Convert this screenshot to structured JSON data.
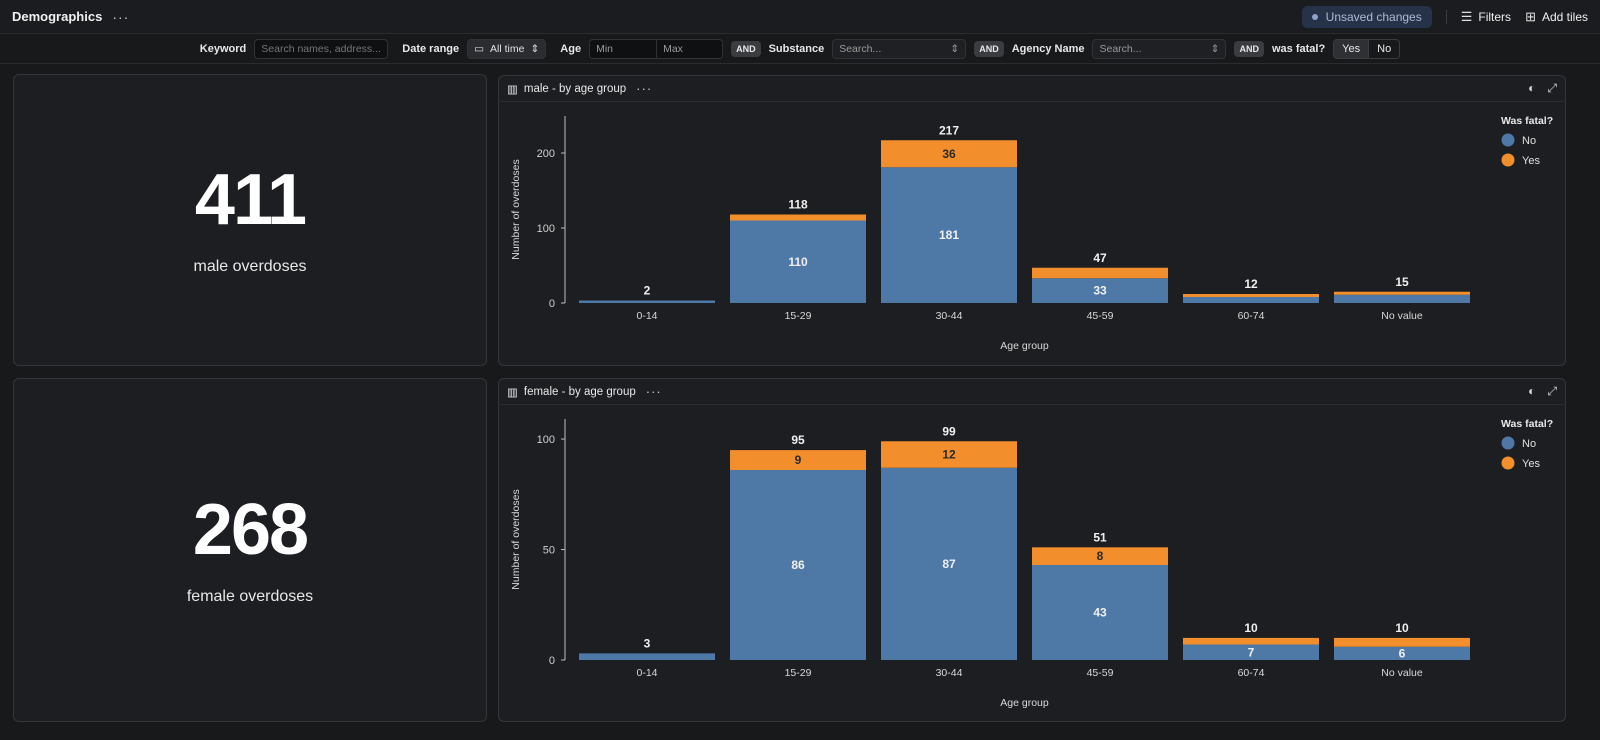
{
  "header": {
    "title": "Demographics",
    "more_icon": "more-horizontal-icon",
    "unsaved_label": "Unsaved changes",
    "filters_label": "Filters",
    "add_tiles_label": "Add tiles"
  },
  "filters": {
    "keyword_label": "Keyword",
    "keyword_placeholder": "Search names, address...",
    "date_range_label": "Date range",
    "date_range_value": "All time",
    "age_label": "Age",
    "age_min_placeholder": "Min",
    "age_max_placeholder": "Max",
    "and_label": "AND",
    "substance_label": "Substance",
    "substance_placeholder": "Search...",
    "agency_label": "Agency Name",
    "agency_placeholder": "Search...",
    "fatal_label": "was fatal?",
    "yes_label": "Yes",
    "no_label": "No"
  },
  "kpis": [
    {
      "value": "411",
      "label": "male overdoses"
    },
    {
      "value": "268",
      "label": "female overdoses"
    }
  ],
  "colors": {
    "no": "#4e79a7",
    "yes": "#f28e2b"
  },
  "chart_data": [
    {
      "type": "bar",
      "title": "male - by age group",
      "xlabel": "Age group",
      "ylabel": "Number of overdoses",
      "ylim": [
        0,
        250
      ],
      "yticks": [
        0,
        100,
        200
      ],
      "categories": [
        "0-14",
        "15-29",
        "30-44",
        "45-59",
        "60-74",
        "No value"
      ],
      "series": [
        {
          "name": "No",
          "values": [
            2,
            110,
            181,
            33,
            8,
            11
          ]
        },
        {
          "name": "Yes",
          "values": [
            0,
            8,
            36,
            14,
            4,
            4
          ]
        }
      ],
      "segment_labels": [
        [
          "",
          "110",
          "181",
          "33",
          "",
          ""
        ],
        [
          "",
          "",
          "36",
          "",
          "",
          ""
        ]
      ],
      "totals": [
        2,
        118,
        217,
        47,
        12,
        15
      ],
      "legend_title": "Was fatal?",
      "legend": [
        "No",
        "Yes"
      ],
      "legend_position": "top-right",
      "stacked": true
    },
    {
      "type": "bar",
      "title": "female - by age group",
      "xlabel": "Age group",
      "ylabel": "Number of overdoses",
      "ylim": [
        0,
        105
      ],
      "yticks": [
        0,
        50,
        100
      ],
      "categories": [
        "0-14",
        "15-29",
        "30-44",
        "45-59",
        "60-74",
        "No value"
      ],
      "series": [
        {
          "name": "No",
          "values": [
            3,
            86,
            87,
            43,
            7,
            6
          ]
        },
        {
          "name": "Yes",
          "values": [
            0,
            9,
            12,
            8,
            3,
            4
          ]
        }
      ],
      "segment_labels": [
        [
          "",
          "86",
          "87",
          "43",
          "7",
          "6"
        ],
        [
          "",
          "9",
          "12",
          "8",
          "",
          ""
        ]
      ],
      "totals": [
        3,
        95,
        99,
        51,
        10,
        10
      ],
      "legend_title": "Was fatal?",
      "legend": [
        "No",
        "Yes"
      ],
      "legend_position": "top-right",
      "stacked": true
    }
  ]
}
